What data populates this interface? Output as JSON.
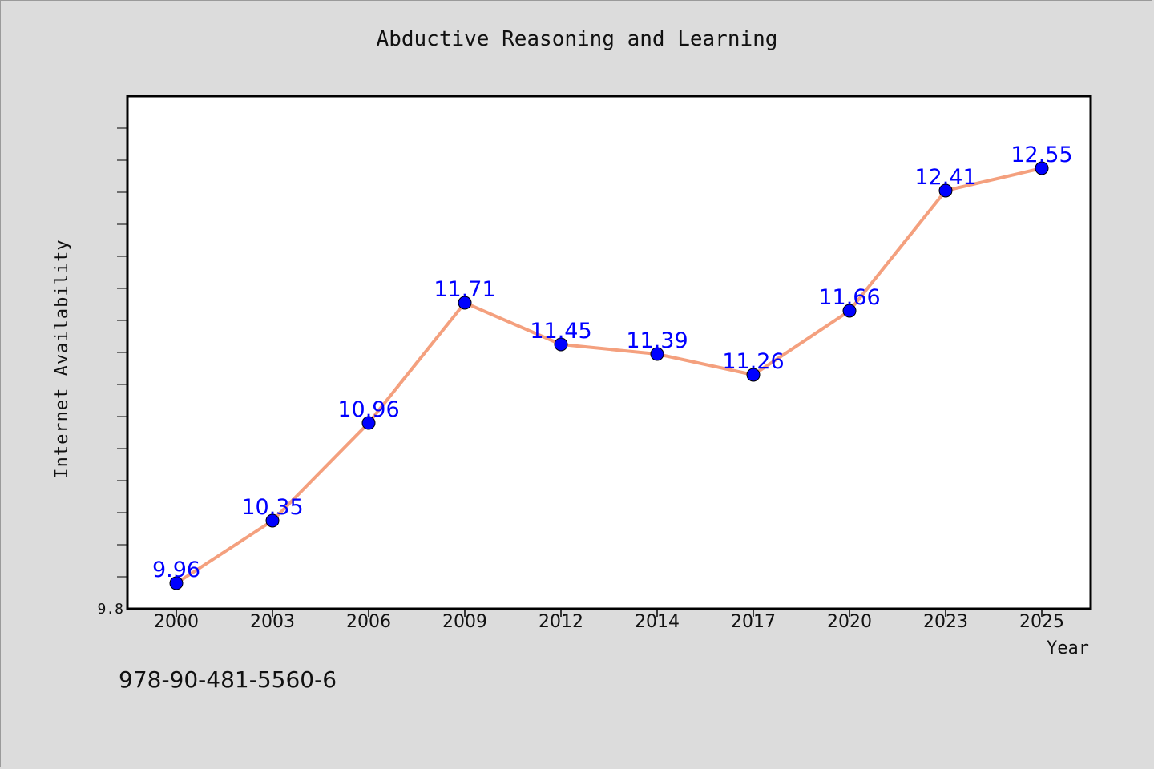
{
  "title": "Abductive Reasoning and Learning",
  "footer_text": "978-90-481-5560-6",
  "colors": {
    "background": "#dcdcdc",
    "plot_background": "#ffffff",
    "line": "#f4a07e",
    "marker": "#0000ff",
    "data_label": "#0000ff"
  },
  "chart_data": {
    "type": "line",
    "title": "Abductive Reasoning and Learning",
    "xlabel": "Year",
    "ylabel": "Internet Availability",
    "x": [
      "2000",
      "2003",
      "2006",
      "2009",
      "2012",
      "2014",
      "2017",
      "2020",
      "2023",
      "2025"
    ],
    "series": [
      {
        "values": [
          9.96,
          10.35,
          10.96,
          11.71,
          11.45,
          11.39,
          11.26,
          11.66,
          12.41,
          12.55
        ]
      }
    ],
    "ylim": [
      9.8,
      13.0
    ],
    "y_tick_labels": [
      "9.8"
    ],
    "y_minor_tick_step": 0.2,
    "grid": false,
    "legend": "none",
    "data_labels": true
  }
}
